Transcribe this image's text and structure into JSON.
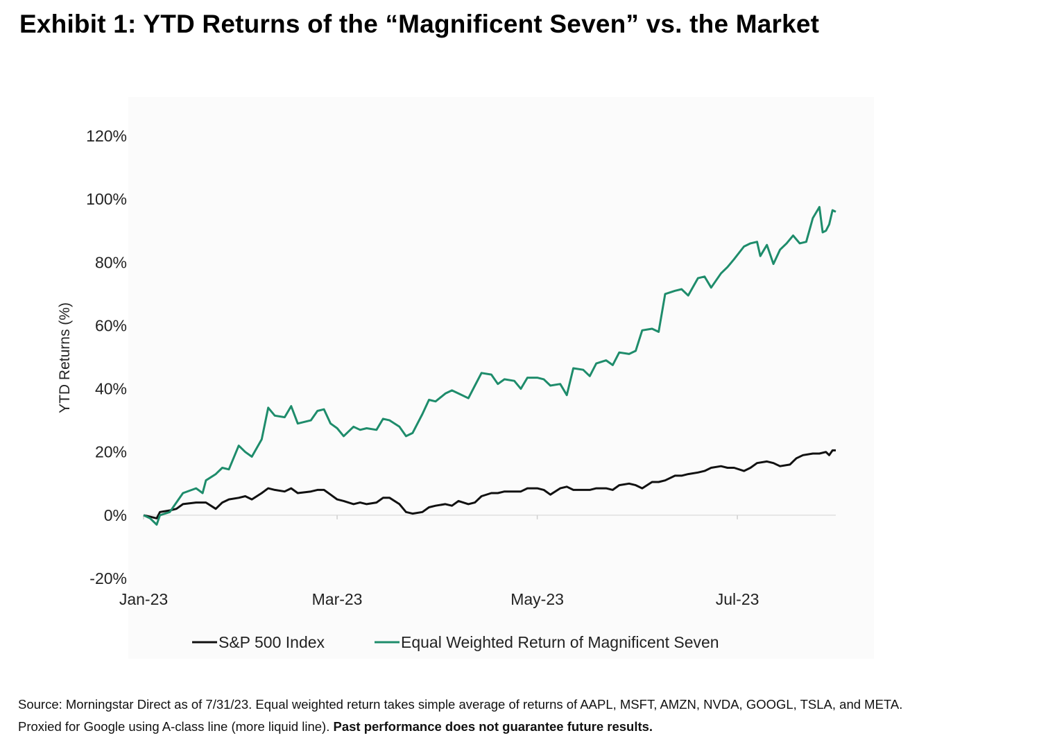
{
  "title": "Exhibit 1: YTD Returns of the “Magnificent Seven” vs. the Market",
  "footnote": {
    "line1": "Source: Morningstar Direct as of 7/31/23. Equal weighted return takes simple average of returns of AAPL, MSFT, AMZN, NVDA, GOOGL, TSLA, and META.",
    "line2_plain": "Proxied for Google using A-class line (more liquid line). ",
    "line2_bold": "Past performance does not guarantee future results."
  },
  "colors": {
    "sp500": "#111111",
    "mag7": "#1e8c6b",
    "grid": "#e6e6e6"
  },
  "chart_data": {
    "type": "line",
    "title": "",
    "xlabel": "",
    "ylabel": "YTD Returns (%)",
    "ylim": [
      -20,
      120
    ],
    "yticks": [
      {
        "value": 120,
        "label": "120%"
      },
      {
        "value": 100,
        "label": "100%"
      },
      {
        "value": 80,
        "label": "80%"
      },
      {
        "value": 60,
        "label": "60%"
      },
      {
        "value": 40,
        "label": "40%"
      },
      {
        "value": 20,
        "label": "20%"
      },
      {
        "value": 0,
        "label": "0%"
      },
      {
        "value": -20,
        "label": "-20%"
      }
    ],
    "xlim": [
      "2023-01-01",
      "2023-07-31"
    ],
    "xticks": [
      {
        "date": "2023-01-01",
        "label": "Jan-23"
      },
      {
        "date": "2023-03-01",
        "label": "Mar-23"
      },
      {
        "date": "2023-05-01",
        "label": "May-23"
      },
      {
        "date": "2023-07-01",
        "label": "Jul-23"
      }
    ],
    "legend": "bottom",
    "series": [
      {
        "name": "S&P 500 Index",
        "color": "#111111",
        "points": [
          [
            "2023-01-01",
            0
          ],
          [
            "2023-01-03",
            -0.5
          ],
          [
            "2023-01-05",
            -1
          ],
          [
            "2023-01-06",
            1
          ],
          [
            "2023-01-09",
            1.5
          ],
          [
            "2023-01-11",
            2
          ],
          [
            "2023-01-13",
            3.5
          ],
          [
            "2023-01-17",
            4
          ],
          [
            "2023-01-19",
            4
          ],
          [
            "2023-01-20",
            4
          ],
          [
            "2023-01-23",
            2
          ],
          [
            "2023-01-25",
            4
          ],
          [
            "2023-01-27",
            5
          ],
          [
            "2023-01-30",
            5.5
          ],
          [
            "2023-02-01",
            6
          ],
          [
            "2023-02-03",
            5
          ],
          [
            "2023-02-06",
            7
          ],
          [
            "2023-02-08",
            8.5
          ],
          [
            "2023-02-10",
            8
          ],
          [
            "2023-02-13",
            7.5
          ],
          [
            "2023-02-15",
            8.5
          ],
          [
            "2023-02-17",
            7
          ],
          [
            "2023-02-21",
            7.5
          ],
          [
            "2023-02-23",
            8
          ],
          [
            "2023-02-25",
            8
          ],
          [
            "2023-02-27",
            6.5
          ],
          [
            "2023-03-01",
            5
          ],
          [
            "2023-03-03",
            4.5
          ],
          [
            "2023-03-06",
            3.5
          ],
          [
            "2023-03-08",
            4
          ],
          [
            "2023-03-10",
            3.5
          ],
          [
            "2023-03-13",
            4
          ],
          [
            "2023-03-15",
            5.5
          ],
          [
            "2023-03-17",
            5.5
          ],
          [
            "2023-03-20",
            3.5
          ],
          [
            "2023-03-22",
            1
          ],
          [
            "2023-03-24",
            0.5
          ],
          [
            "2023-03-27",
            1
          ],
          [
            "2023-03-29",
            2.5
          ],
          [
            "2023-03-31",
            3
          ],
          [
            "2023-04-03",
            3.5
          ],
          [
            "2023-04-05",
            3
          ],
          [
            "2023-04-07",
            4.5
          ],
          [
            "2023-04-10",
            3.5
          ],
          [
            "2023-04-12",
            4
          ],
          [
            "2023-04-14",
            6
          ],
          [
            "2023-04-17",
            7
          ],
          [
            "2023-04-19",
            7
          ],
          [
            "2023-04-21",
            7.5
          ],
          [
            "2023-04-24",
            7.5
          ],
          [
            "2023-04-26",
            7.5
          ],
          [
            "2023-04-28",
            8.5
          ],
          [
            "2023-05-01",
            8.5
          ],
          [
            "2023-05-03",
            8
          ],
          [
            "2023-05-05",
            6.5
          ],
          [
            "2023-05-08",
            8.5
          ],
          [
            "2023-05-10",
            9
          ],
          [
            "2023-05-12",
            8
          ],
          [
            "2023-05-15",
            8
          ],
          [
            "2023-05-17",
            8
          ],
          [
            "2023-05-19",
            8.5
          ],
          [
            "2023-05-22",
            8.5
          ],
          [
            "2023-05-24",
            8
          ],
          [
            "2023-05-26",
            9.5
          ],
          [
            "2023-05-29",
            10
          ],
          [
            "2023-05-31",
            9.5
          ],
          [
            "2023-06-02",
            8.5
          ],
          [
            "2023-06-05",
            10.5
          ],
          [
            "2023-06-07",
            10.5
          ],
          [
            "2023-06-09",
            11
          ],
          [
            "2023-06-12",
            12.5
          ],
          [
            "2023-06-14",
            12.5
          ],
          [
            "2023-06-16",
            13
          ],
          [
            "2023-06-19",
            13.5
          ],
          [
            "2023-06-21",
            14
          ],
          [
            "2023-06-23",
            15
          ],
          [
            "2023-06-26",
            15.5
          ],
          [
            "2023-06-28",
            15
          ],
          [
            "2023-06-30",
            15
          ],
          [
            "2023-07-03",
            14
          ],
          [
            "2023-07-05",
            15
          ],
          [
            "2023-07-07",
            16.5
          ],
          [
            "2023-07-10",
            17
          ],
          [
            "2023-07-12",
            16.5
          ],
          [
            "2023-07-14",
            15.5
          ],
          [
            "2023-07-17",
            16
          ],
          [
            "2023-07-19",
            18
          ],
          [
            "2023-07-21",
            19
          ],
          [
            "2023-07-24",
            19.5
          ],
          [
            "2023-07-26",
            19.5
          ],
          [
            "2023-07-28",
            20
          ],
          [
            "2023-07-29",
            19
          ],
          [
            "2023-07-30",
            20.5
          ],
          [
            "2023-07-31",
            20.5
          ]
        ]
      },
      {
        "name": "Equal Weighted Return of Magnificent Seven",
        "color": "#1e8c6b",
        "points": [
          [
            "2023-01-01",
            0
          ],
          [
            "2023-01-03",
            -1
          ],
          [
            "2023-01-05",
            -3
          ],
          [
            "2023-01-06",
            0
          ],
          [
            "2023-01-09",
            1
          ],
          [
            "2023-01-11",
            4
          ],
          [
            "2023-01-13",
            7
          ],
          [
            "2023-01-17",
            8.5
          ],
          [
            "2023-01-19",
            7
          ],
          [
            "2023-01-20",
            11
          ],
          [
            "2023-01-23",
            13
          ],
          [
            "2023-01-25",
            15
          ],
          [
            "2023-01-27",
            14.5
          ],
          [
            "2023-01-30",
            22
          ],
          [
            "2023-02-01",
            20
          ],
          [
            "2023-02-03",
            18.5
          ],
          [
            "2023-02-06",
            24
          ],
          [
            "2023-02-08",
            34
          ],
          [
            "2023-02-10",
            31.5
          ],
          [
            "2023-02-13",
            31
          ],
          [
            "2023-02-15",
            34.5
          ],
          [
            "2023-02-17",
            29
          ],
          [
            "2023-02-21",
            30
          ],
          [
            "2023-02-23",
            33
          ],
          [
            "2023-02-25",
            33.5
          ],
          [
            "2023-02-27",
            29
          ],
          [
            "2023-03-01",
            27.5
          ],
          [
            "2023-03-03",
            25
          ],
          [
            "2023-03-06",
            28
          ],
          [
            "2023-03-08",
            27
          ],
          [
            "2023-03-10",
            27.5
          ],
          [
            "2023-03-13",
            27
          ],
          [
            "2023-03-15",
            30.5
          ],
          [
            "2023-03-17",
            30
          ],
          [
            "2023-03-20",
            28
          ],
          [
            "2023-03-22",
            25
          ],
          [
            "2023-03-24",
            26
          ],
          [
            "2023-03-27",
            32
          ],
          [
            "2023-03-29",
            36.5
          ],
          [
            "2023-03-31",
            36
          ],
          [
            "2023-04-03",
            38.5
          ],
          [
            "2023-04-05",
            39.5
          ],
          [
            "2023-04-07",
            38.5
          ],
          [
            "2023-04-10",
            37
          ],
          [
            "2023-04-12",
            41
          ],
          [
            "2023-04-14",
            45
          ],
          [
            "2023-04-17",
            44.5
          ],
          [
            "2023-04-19",
            41.5
          ],
          [
            "2023-04-21",
            43
          ],
          [
            "2023-04-24",
            42.5
          ],
          [
            "2023-04-26",
            40
          ],
          [
            "2023-04-28",
            43.5
          ],
          [
            "2023-05-01",
            43.5
          ],
          [
            "2023-05-03",
            43
          ],
          [
            "2023-05-05",
            41
          ],
          [
            "2023-05-08",
            41.5
          ],
          [
            "2023-05-10",
            38
          ],
          [
            "2023-05-12",
            46.5
          ],
          [
            "2023-05-15",
            46
          ],
          [
            "2023-05-17",
            44
          ],
          [
            "2023-05-19",
            48
          ],
          [
            "2023-05-22",
            49
          ],
          [
            "2023-05-24",
            47.5
          ],
          [
            "2023-05-26",
            51.5
          ],
          [
            "2023-05-29",
            51
          ],
          [
            "2023-05-31",
            52
          ],
          [
            "2023-06-02",
            58.5
          ],
          [
            "2023-06-05",
            59
          ],
          [
            "2023-06-07",
            58
          ],
          [
            "2023-06-09",
            70
          ],
          [
            "2023-06-12",
            71
          ],
          [
            "2023-06-14",
            71.5
          ],
          [
            "2023-06-16",
            69.5
          ],
          [
            "2023-06-19",
            75
          ],
          [
            "2023-06-21",
            75.5
          ],
          [
            "2023-06-23",
            72
          ],
          [
            "2023-06-26",
            76.5
          ],
          [
            "2023-06-28",
            78.5
          ],
          [
            "2023-06-30",
            81
          ],
          [
            "2023-07-03",
            85
          ],
          [
            "2023-07-05",
            86
          ],
          [
            "2023-07-07",
            86.5
          ],
          [
            "2023-07-08",
            82
          ],
          [
            "2023-07-10",
            85.5
          ],
          [
            "2023-07-12",
            79.5
          ],
          [
            "2023-07-14",
            84
          ],
          [
            "2023-07-16",
            86
          ],
          [
            "2023-07-18",
            88.5
          ],
          [
            "2023-07-20",
            86
          ],
          [
            "2023-07-22",
            86.5
          ],
          [
            "2023-07-24",
            94
          ],
          [
            "2023-07-26",
            97.5
          ],
          [
            "2023-07-27",
            89.5
          ],
          [
            "2023-07-28",
            90
          ],
          [
            "2023-07-29",
            92
          ],
          [
            "2023-07-30",
            96.5
          ],
          [
            "2023-07-31",
            96
          ]
        ]
      }
    ]
  }
}
